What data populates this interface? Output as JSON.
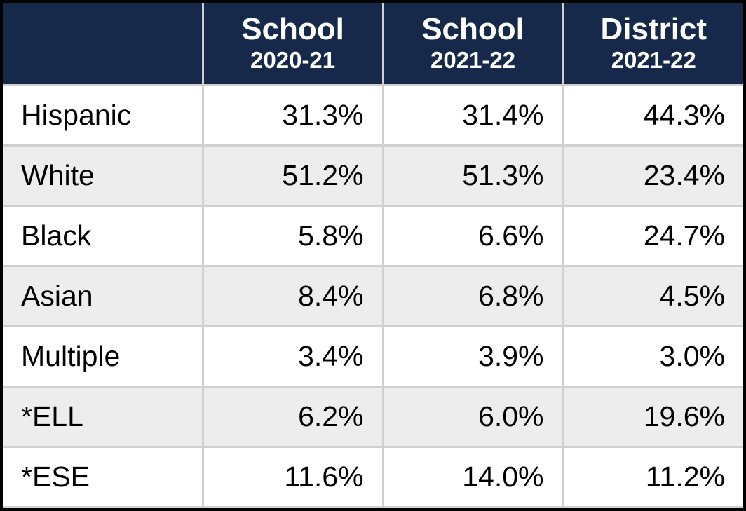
{
  "table": {
    "type": "table",
    "header_bg_color": "#17294a",
    "header_text_color": "#ffffff",
    "row_even_bg": "#ededed",
    "row_odd_bg": "#ffffff",
    "border_color": "#d0d0d0",
    "outer_border_color": "#000000",
    "cell_text_color": "#000000",
    "header_main_fontsize": 44,
    "header_sub_fontsize": 33,
    "cell_fontsize": 41,
    "columns": [
      {
        "main": "",
        "sub": "",
        "width_pct": 27,
        "align": "left"
      },
      {
        "main": "School",
        "sub": "2020-21",
        "width_pct": 24.333,
        "align": "right"
      },
      {
        "main": "School",
        "sub": "2021-22",
        "width_pct": 24.333,
        "align": "right"
      },
      {
        "main": "District",
        "sub": "2021-22",
        "width_pct": 24.333,
        "align": "right"
      }
    ],
    "rows": [
      {
        "label": "Hispanic",
        "c1": "31.3%",
        "c2": "31.4%",
        "c3": "44.3%"
      },
      {
        "label": "White",
        "c1": "51.2%",
        "c2": "51.3%",
        "c3": "23.4%"
      },
      {
        "label": "Black",
        "c1": "5.8%",
        "c2": "6.6%",
        "c3": "24.7%"
      },
      {
        "label": "Asian",
        "c1": "8.4%",
        "c2": "6.8%",
        "c3": "4.5%"
      },
      {
        "label": "Multiple",
        "c1": "3.4%",
        "c2": "3.9%",
        "c3": "3.0%"
      },
      {
        "label": "*ELL",
        "c1": "6.2%",
        "c2": "6.0%",
        "c3": "19.6%"
      },
      {
        "label": "*ESE",
        "c1": "11.6%",
        "c2": "14.0%",
        "c3": "11.2%"
      }
    ]
  }
}
